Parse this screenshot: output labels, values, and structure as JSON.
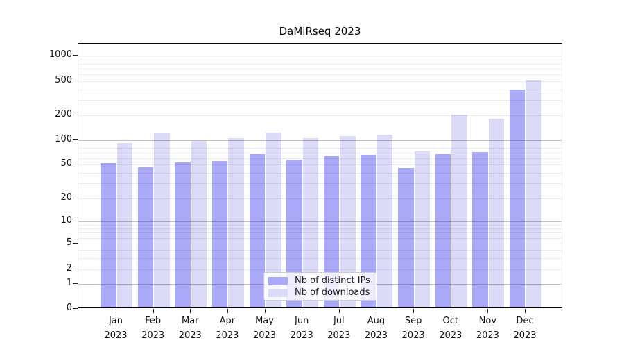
{
  "title": "DaMiRseq 2023",
  "colors": {
    "ips_bar": "#a9a9f8",
    "downloads_bar": "#dbdbf8",
    "axis": "#000000",
    "decade_gridline": "#b4b4b4",
    "minor_gridline": "#ececec"
  },
  "chart_data": {
    "type": "bar",
    "title": "DaMiRseq 2023",
    "categories": [
      "Jan",
      "Feb",
      "Mar",
      "Apr",
      "May",
      "Jun",
      "Jul",
      "Aug",
      "Sep",
      "Oct",
      "Nov",
      "Dec"
    ],
    "year": "2023",
    "series": [
      {
        "name": "Nb of distinct IPs",
        "color": "#a9a9f8",
        "values": [
          50,
          45,
          51,
          53,
          65,
          55,
          61,
          63,
          44,
          65,
          68,
          385
        ]
      },
      {
        "name": "Nb of downloads",
        "color": "#dbdbf8",
        "values": [
          88,
          117,
          95,
          102,
          120,
          101,
          109,
          113,
          70,
          195,
          176,
          500
        ]
      }
    ],
    "xlabel": "",
    "ylabel": "",
    "yscale": "symlog",
    "ylim": [
      0,
      1400
    ],
    "yticks": [
      0,
      1,
      2,
      5,
      10,
      20,
      50,
      100,
      200,
      500,
      1000
    ],
    "ytick_labels": [
      "0",
      "1",
      "2",
      "5",
      "10",
      "20",
      "50",
      "100",
      "200",
      "500",
      "1000"
    ],
    "grid": "horizontal log gridlines, decades emphasized, drawn over bars",
    "legend_position": "lower center inside plot"
  },
  "legend": {
    "items": [
      {
        "label": "Nb of distinct IPs"
      },
      {
        "label": "Nb of downloads"
      }
    ]
  }
}
